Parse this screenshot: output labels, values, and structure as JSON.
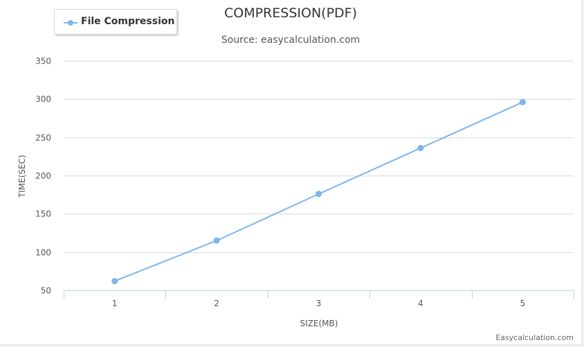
{
  "chart_data": {
    "type": "line",
    "title": "COMPRESSION(PDF)",
    "subtitle": "Source: easycalculation.com",
    "xlabel": "SIZE(MB)",
    "ylabel": "TIME(SEC)",
    "categories": [
      "1",
      "2",
      "3",
      "4",
      "5"
    ],
    "series": [
      {
        "name": "File Compression",
        "values": [
          62,
          115,
          176,
          236,
          296
        ]
      }
    ],
    "ylim": [
      50,
      350
    ],
    "yticks": [
      50,
      100,
      150,
      200,
      250,
      300,
      350
    ],
    "grid": true,
    "legend_position": "top-left",
    "colors": {
      "series": "#7cb5ec",
      "grid": "#d8d8d8",
      "axis": "#c0d0e0"
    }
  },
  "credit": "Easycalculation.com",
  "legend": {
    "series_icon": "line-with-dot-marker"
  }
}
